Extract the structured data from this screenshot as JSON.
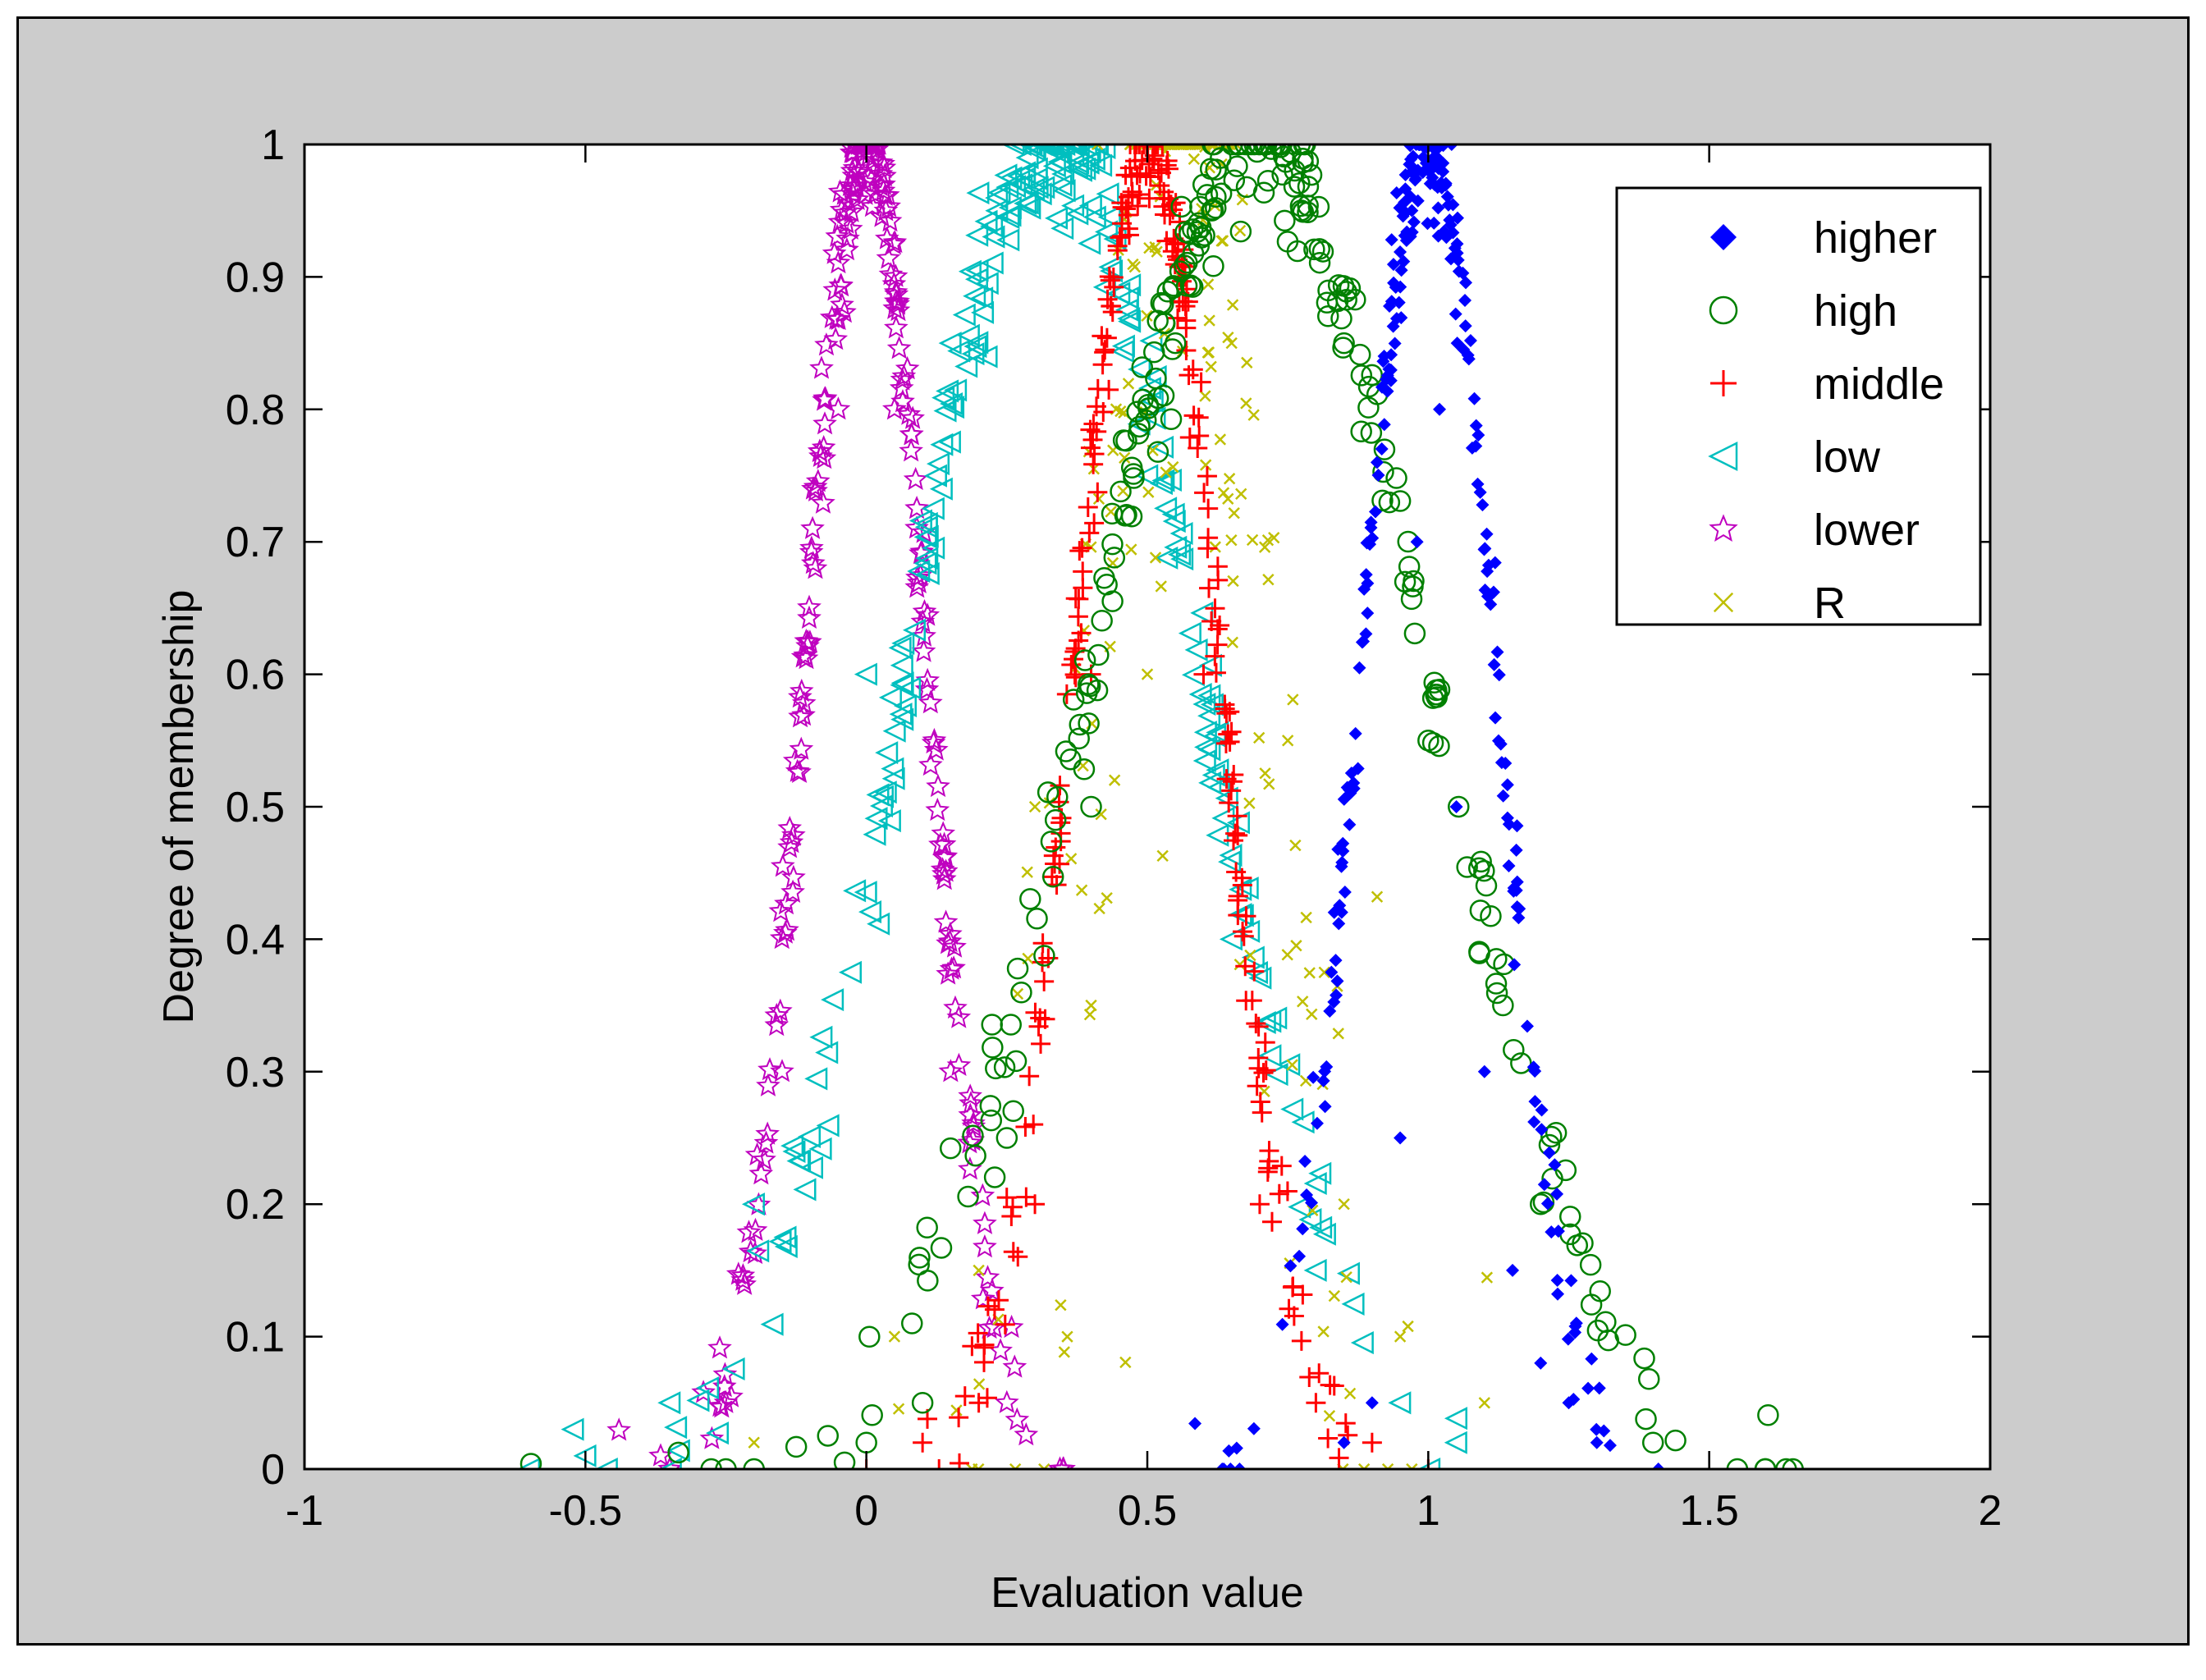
{
  "colors": {
    "window_background": "#cccccc",
    "plot_background": "#ffffff",
    "higher": "#0000ff",
    "high": "#008000",
    "middle": "#ff0000",
    "low": "#00bfbf",
    "lower": "#bf00bf",
    "R": "#bfbf00"
  },
  "chart_data": {
    "type": "scatter",
    "title": "",
    "xlabel": "Evaluation value",
    "ylabel": "Degree of membership",
    "xlim": [
      -1,
      2
    ],
    "ylim": [
      0,
      1
    ],
    "xticks": [
      -1,
      -0.5,
      0,
      0.5,
      1,
      1.5,
      2
    ],
    "xtick_labels": [
      "-1",
      "-0.5",
      "0",
      "0.5",
      "1",
      "1.5",
      "2"
    ],
    "yticks": [
      0,
      0.1,
      0.2,
      0.3,
      0.4,
      0.5,
      0.6,
      0.7,
      0.8,
      0.9,
      1
    ],
    "ytick_labels": [
      "0",
      "0.1",
      "0.2",
      "0.3",
      "0.4",
      "0.5",
      "0.6",
      "0.7",
      "0.8",
      "0.9",
      "1"
    ],
    "grid": false,
    "legend_position": "top-right",
    "series": [
      {
        "name": "higher",
        "marker": "filled-diamond",
        "color": "#0000ff",
        "center": 1.0,
        "spread": 0.12,
        "points": [
          [
            0.85,
            0.02
          ],
          [
            0.9,
            0.05
          ],
          [
            0.95,
            0.25
          ],
          [
            0.98,
            0.7
          ],
          [
            1.0,
            1.0
          ],
          [
            1.02,
            0.8
          ],
          [
            1.05,
            0.5
          ],
          [
            1.1,
            0.3
          ],
          [
            1.15,
            0.15
          ],
          [
            1.2,
            0.08
          ],
          [
            1.25,
            0.05
          ],
          [
            1.3,
            0.02
          ]
        ]
      },
      {
        "name": "high",
        "marker": "open-circle",
        "color": "#008000",
        "center": 0.7,
        "spread": 0.3,
        "points": [
          [
            -0.25,
            0.0
          ],
          [
            -0.2,
            0.0
          ],
          [
            0.0,
            0.02
          ],
          [
            0.1,
            0.05
          ],
          [
            0.25,
            0.25
          ],
          [
            0.4,
            0.5
          ],
          [
            0.55,
            0.85
          ],
          [
            0.7,
            1.0
          ],
          [
            0.85,
            0.85
          ],
          [
            1.0,
            0.55
          ],
          [
            1.2,
            0.2
          ],
          [
            1.4,
            0.02
          ],
          [
            1.55,
            0.0
          ],
          [
            1.6,
            0.0
          ]
        ]
      },
      {
        "name": "middle",
        "marker": "plus",
        "color": "#ff0000",
        "center": 0.5,
        "spread": 0.13,
        "points": [
          [
            0.0,
            0.0
          ],
          [
            0.1,
            0.02
          ],
          [
            0.2,
            0.05
          ],
          [
            0.3,
            0.2
          ],
          [
            0.4,
            0.6
          ],
          [
            0.5,
            1.0
          ],
          [
            0.6,
            0.6
          ],
          [
            0.7,
            0.2
          ],
          [
            0.8,
            0.05
          ],
          [
            0.9,
            0.02
          ],
          [
            1.0,
            0.0
          ]
        ]
      },
      {
        "name": "low",
        "marker": "open-triangle-left",
        "color": "#00bfbf",
        "center": 0.33,
        "spread": 0.26,
        "points": [
          [
            -0.6,
            0.0
          ],
          [
            -0.5,
            0.01
          ],
          [
            -0.35,
            0.05
          ],
          [
            -0.2,
            0.2
          ],
          [
            0.0,
            0.6
          ],
          [
            0.15,
            0.85
          ],
          [
            0.33,
            1.0
          ],
          [
            0.5,
            0.75
          ],
          [
            0.65,
            0.4
          ],
          [
            0.8,
            0.15
          ],
          [
            0.95,
            0.05
          ],
          [
            1.05,
            0.02
          ]
        ]
      },
      {
        "name": "lower",
        "marker": "open-star",
        "color": "#bf00bf",
        "center": 0.0,
        "spread": 0.11,
        "points": [
          [
            -0.35,
            0.0
          ],
          [
            -0.25,
            0.05
          ],
          [
            -0.15,
            0.3
          ],
          [
            -0.05,
            0.8
          ],
          [
            0.0,
            1.0
          ],
          [
            0.05,
            0.8
          ],
          [
            0.15,
            0.3
          ],
          [
            0.25,
            0.05
          ],
          [
            0.35,
            0.0
          ]
        ]
      },
      {
        "name": "R",
        "marker": "x",
        "color": "#bfbf00",
        "center": 0.56,
        "spread": 0.15,
        "points": [
          [
            -0.2,
            0.02
          ],
          [
            0.05,
            0.1
          ],
          [
            0.2,
            0.15
          ],
          [
            0.3,
            0.5
          ],
          [
            0.4,
            0.35
          ],
          [
            0.5,
            0.6
          ],
          [
            0.56,
            1.0
          ],
          [
            0.65,
            0.85
          ],
          [
            0.75,
            0.55
          ],
          [
            0.85,
            0.2
          ],
          [
            0.95,
            0.1
          ],
          [
            1.1,
            0.05
          ]
        ]
      }
    ]
  }
}
